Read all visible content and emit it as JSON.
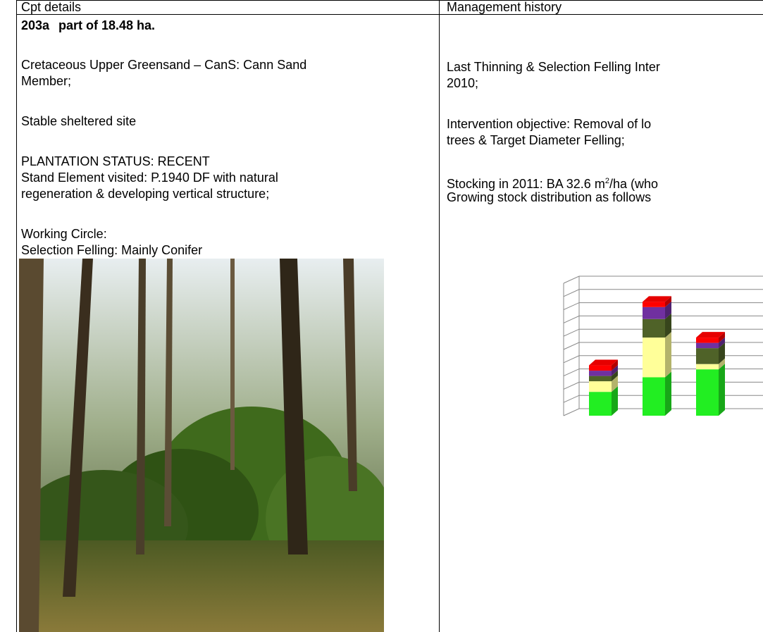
{
  "header": {
    "left": "Cpt details",
    "right": "Management history"
  },
  "left": {
    "cpt_id": "203a",
    "cpt_area": "part of 18.48 ha.",
    "geology_1": "Cretaceous Upper Greensand – CanS: Cann Sand",
    "geology_2": "Member;",
    "site": "Stable sheltered site",
    "plantation_status": "PLANTATION STATUS: RECENT",
    "stand_1": "Stand Element visited: P.1940 DF with natural",
    "stand_2": "regeneration & developing vertical structure;",
    "working_circle_label": "Working Circle:",
    "working_circle": "Selection Felling: Mainly Conifer"
  },
  "right": {
    "last_thinning_1": "Last Thinning & Selection Felling Inter",
    "last_thinning_2": "2010;",
    "objective_1": "Intervention objective: Removal of lo",
    "objective_2": "trees & Target Diameter Felling;",
    "stocking_a": "Stocking in 2011: BA 32.6 m",
    "stocking_sup": "2",
    "stocking_b": "/ha (who",
    "distribution": "Growing stock distribution as follows"
  },
  "chart_data": {
    "type": "bar",
    "stacked": true,
    "three_d": true,
    "grid": true,
    "ylim": [
      0,
      10
    ],
    "yticks": [
      0,
      1,
      2,
      3,
      4,
      5,
      6,
      7,
      8,
      9,
      10
    ],
    "series": [
      {
        "color": "#22ee22",
        "values": [
          1.8,
          2.9,
          3.5
        ]
      },
      {
        "color": "#ffff99",
        "values": [
          0.8,
          3.0,
          0.4
        ]
      },
      {
        "color": "#4f6228",
        "values": [
          0.4,
          1.4,
          1.2
        ]
      },
      {
        "color": "#7030a0",
        "values": [
          0.4,
          0.9,
          0.4
        ]
      },
      {
        "color": "#ff0000",
        "values": [
          0.4,
          0.4,
          0.4
        ]
      }
    ]
  }
}
